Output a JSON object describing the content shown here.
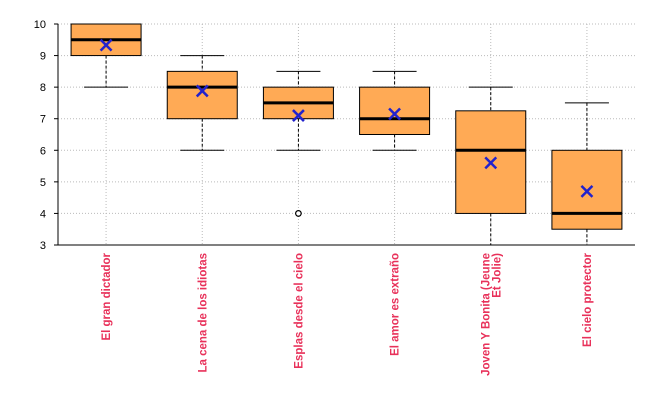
{
  "chart_data": {
    "type": "boxplot",
    "title": "",
    "xlabel": "",
    "ylabel": "",
    "ylim": [
      3,
      10
    ],
    "yticks": [
      3,
      4,
      5,
      6,
      7,
      8,
      9,
      10
    ],
    "grid": true,
    "categories": [
      "El gran dictador",
      "La cena de los idiotas",
      "Esplas desde el cielo",
      "El amor es extraño",
      "Joven Y Bonita (Jeune Et Jolie)",
      "El cielo protector"
    ],
    "category_label_lines": [
      [
        "El gran dictador"
      ],
      [
        "La cena de los idiotas"
      ],
      [
        "Esplas desde el cielo"
      ],
      [
        "El amor es extraño"
      ],
      [
        "Joven Y Bonita (Jeune",
        "Et Jolie)"
      ],
      [
        "El cielo protector"
      ]
    ],
    "boxes": [
      {
        "whisker_low": 8,
        "q1": 9,
        "median": 9.5,
        "q3": 10,
        "whisker_high": 10,
        "mean": 9.33,
        "outliers": []
      },
      {
        "whisker_low": 6,
        "q1": 7,
        "median": 8,
        "q3": 8.5,
        "whisker_high": 9,
        "mean": 7.88,
        "outliers": []
      },
      {
        "whisker_low": 6,
        "q1": 7,
        "median": 7.5,
        "q3": 8,
        "whisker_high": 8.5,
        "mean": 7.1,
        "outliers": [
          4
        ]
      },
      {
        "whisker_low": 6,
        "q1": 6.5,
        "median": 7,
        "q3": 8,
        "whisker_high": 8.5,
        "mean": 7.15,
        "outliers": []
      },
      {
        "whisker_low": 3,
        "q1": 4,
        "median": 6,
        "q3": 7.25,
        "whisker_high": 8,
        "mean": 5.6,
        "outliers": []
      },
      {
        "whisker_low": 3,
        "q1": 3.5,
        "median": 4,
        "q3": 6,
        "whisker_high": 7.5,
        "mean": 4.7,
        "outliers": []
      }
    ],
    "colors": {
      "box_fill": "#ffaa55",
      "median_line": "#000000",
      "mean_marker": "#2222cc",
      "label": "#e8315a",
      "grid": "#bbbbbb"
    }
  }
}
